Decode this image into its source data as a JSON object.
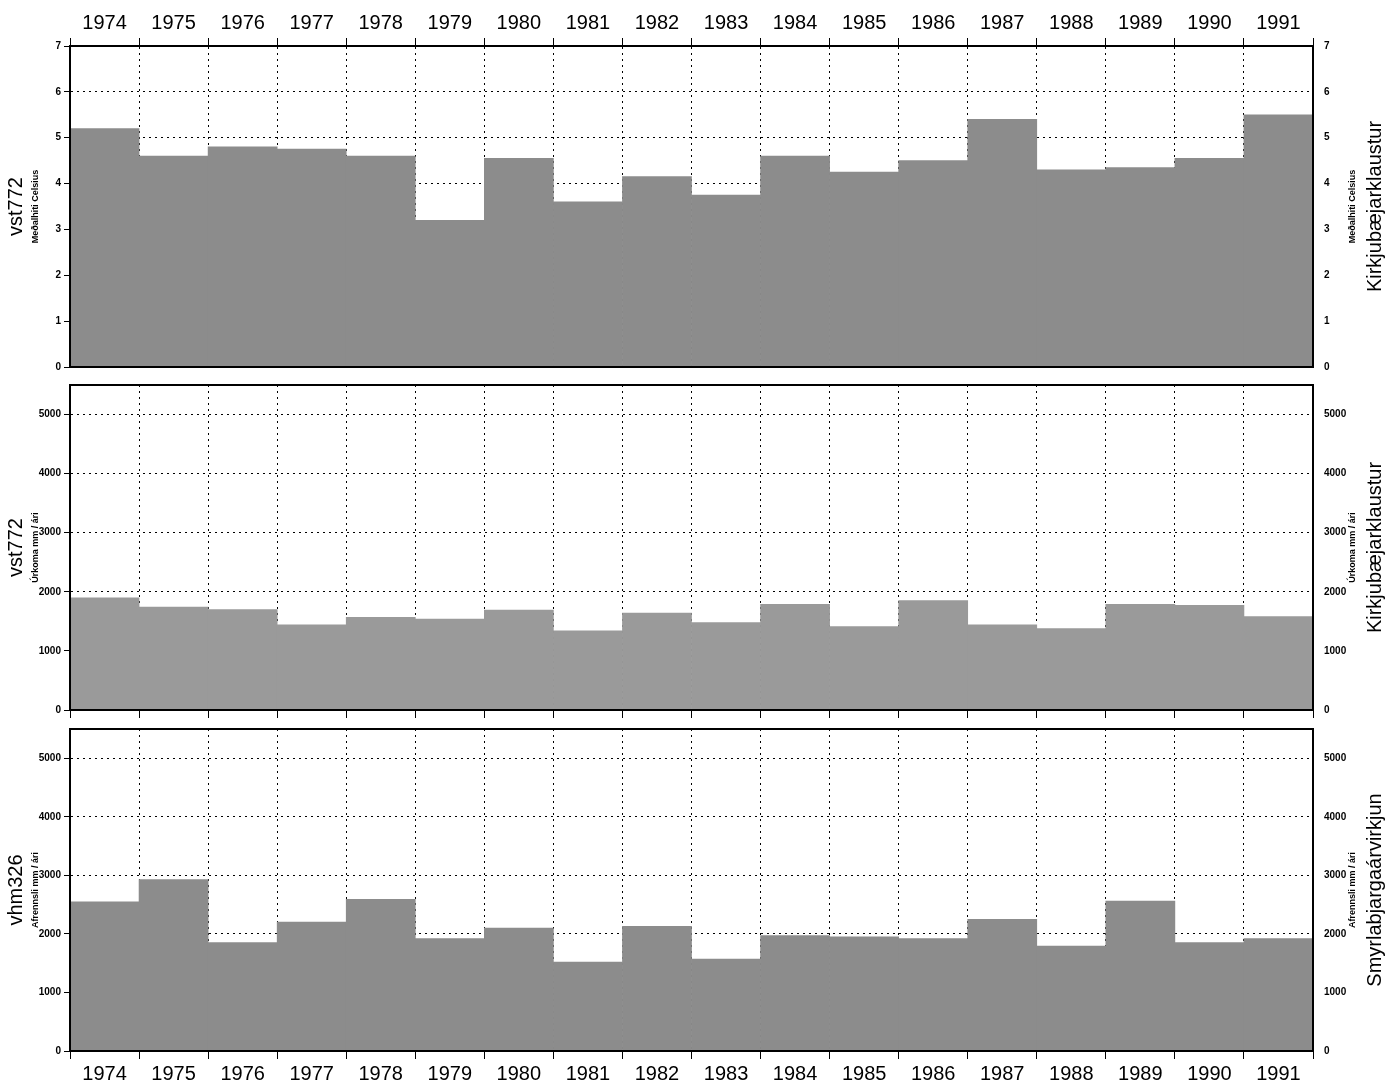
{
  "chart_data": [
    {
      "type": "bar",
      "ylabel": "vst772\nMeðalhiti Celsius",
      "y2label": "Meðalhiti Celsius\nKirkjubæjarklaustur",
      "categories": [
        "1974",
        "1975",
        "1976",
        "1977",
        "1978",
        "1979",
        "1980",
        "1981",
        "1982",
        "1983",
        "1984",
        "1985",
        "1986",
        "1987",
        "1988",
        "1989",
        "1990",
        "1991"
      ],
      "values": [
        5.2,
        4.6,
        4.8,
        4.75,
        4.6,
        3.2,
        4.55,
        3.6,
        4.15,
        3.75,
        4.6,
        4.25,
        4.5,
        5.4,
        4.3,
        4.35,
        4.55,
        5.5
      ],
      "color": "#8c8c8c",
      "ylim": [
        0,
        7
      ],
      "yticks": [
        0,
        1,
        2,
        3,
        4,
        5,
        6,
        7
      ],
      "y2lim": [
        0,
        7
      ],
      "y2ticks": [
        0,
        1,
        2,
        3,
        4,
        5,
        6,
        7
      ],
      "grid": true,
      "legend": false
    },
    {
      "type": "bar",
      "ylabel": "vst772\nÚrkoma mm / ári",
      "y2label": "Úrkoma mm / ári\nKirkjubæjarklaustur",
      "categories": [
        "1974",
        "1975",
        "1976",
        "1977",
        "1978",
        "1979",
        "1980",
        "1981",
        "1982",
        "1983",
        "1984",
        "1985",
        "1986",
        "1987",
        "1988",
        "1989",
        "1990",
        "1991"
      ],
      "values": [
        1900,
        1740,
        1700,
        1440,
        1570,
        1540,
        1690,
        1340,
        1640,
        1480,
        1790,
        1410,
        1850,
        1440,
        1380,
        1790,
        1770,
        1580
      ],
      "color": "#9a9a9a",
      "ylim": [
        0,
        5500
      ],
      "yticks": [
        0,
        1000,
        2000,
        3000,
        4000,
        5000
      ],
      "y2lim": [
        0,
        5500
      ],
      "y2ticks": [
        0,
        1000,
        2000,
        3000,
        4000,
        5000
      ],
      "grid": true,
      "legend": false,
      "tick_labels": "y"
    },
    {
      "type": "bar",
      "ylabel": "vhm326\nAfrennsli mm / ári",
      "y2label": "Afrennsli mm / ári\nSmyrlabjargaárvirkjun",
      "categories": [
        "1974",
        "1975",
        "1976",
        "1977",
        "1978",
        "1979",
        "1980",
        "1981",
        "1982",
        "1983",
        "1984",
        "1985",
        "1986",
        "1987",
        "1988",
        "1989",
        "1990",
        "1991"
      ],
      "values": [
        2550,
        2930,
        1850,
        2200,
        2590,
        1920,
        2100,
        1520,
        2130,
        1570,
        1970,
        1950,
        1920,
        2250,
        1790,
        2560,
        1850,
        1920
      ],
      "color": "#8c8c8c",
      "ylim": [
        0,
        5500
      ],
      "yticks": [
        0,
        1000,
        2000,
        3000,
        4000,
        5000
      ],
      "y2lim": [
        0,
        5500
      ],
      "y2ticks": [
        0,
        1000,
        2000,
        3000,
        4000,
        5000
      ],
      "grid": true,
      "legend": false
    }
  ]
}
